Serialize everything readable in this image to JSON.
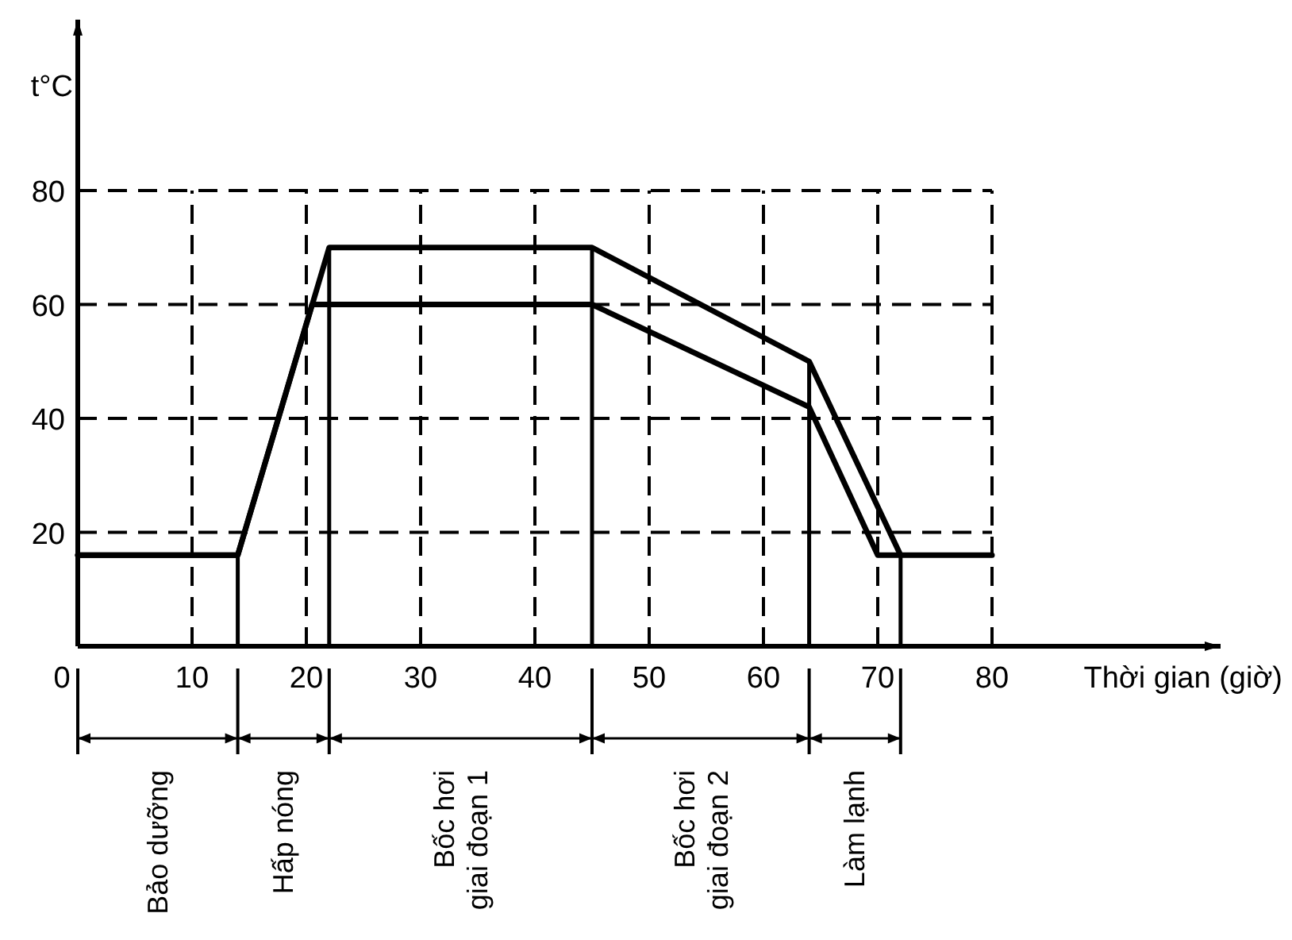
{
  "chart_data": {
    "type": "line",
    "xlabel": "Thời gian (giờ)",
    "ylabel": "t°C",
    "xlim": [
      0,
      100
    ],
    "ylim": [
      0,
      110
    ],
    "xticks": [
      0,
      10,
      20,
      30,
      40,
      50,
      60,
      70,
      80
    ],
    "yticks": [
      20,
      40,
      60,
      80
    ],
    "grid": true,
    "marker": "none",
    "line_style": "solid",
    "series": [
      {
        "color": "#000000",
        "x": [
          0,
          14,
          22,
          45,
          64,
          72,
          80
        ],
        "values": [
          16,
          16,
          70,
          70,
          50,
          16,
          16
        ]
      },
      {
        "color": "#000000",
        "x": [
          0,
          14,
          20.5,
          45,
          64,
          70,
          72
        ],
        "values": [
          16,
          16,
          60,
          60,
          42,
          16,
          16
        ]
      }
    ],
    "ref_lines": [
      {
        "axis": "x",
        "value": 14
      },
      {
        "axis": "x",
        "value": 22
      },
      {
        "axis": "x",
        "value": 45
      },
      {
        "axis": "x",
        "value": 64
      },
      {
        "axis": "x",
        "value": 72
      }
    ],
    "annotations": [
      "Bảo dưỡng",
      "Hấp nóng",
      "Bốc hơi\ngiai đoạn 1",
      "Bốc hơi\ngiai đoạn 2",
      "Làm lạnh"
    ]
  }
}
